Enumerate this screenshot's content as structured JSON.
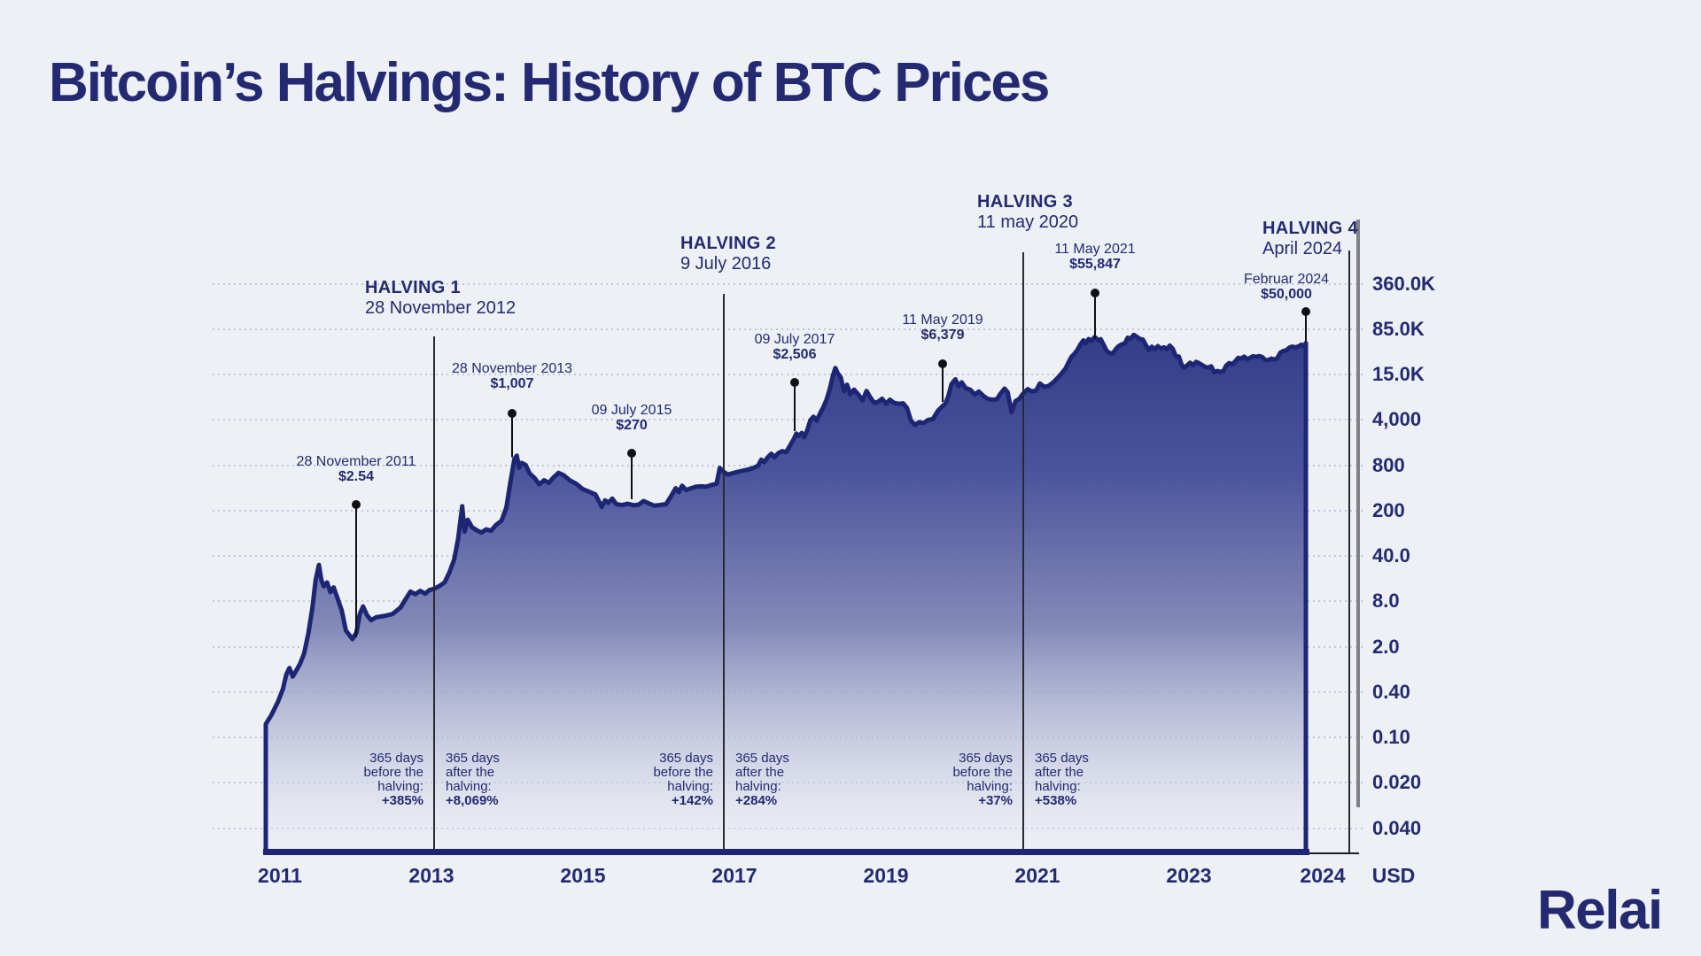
{
  "title": "Bitcoin’s Halvings: History of BTC Prices",
  "brand": "Relai",
  "chart_data": {
    "type": "area",
    "y_scale": "log",
    "title": "Bitcoin’s Halvings: History of BTC Prices",
    "unit_label": "USD",
    "grid": "dotted-horizontal",
    "y_ticks": [
      "360.0K",
      "85.0K",
      "15.0K",
      "4,000",
      "800",
      "200",
      "40.0",
      "8.0",
      "2.0",
      "0.40",
      "0.10",
      "0.020",
      "0.040"
    ],
    "y_tick_values": [
      360000,
      85000,
      15000,
      4000,
      800,
      200,
      40,
      8,
      2,
      0.4,
      0.1,
      0.02,
      0.04
    ],
    "x_ticks": [
      "2011",
      "2013",
      "2015",
      "2017",
      "2019",
      "2021",
      "2023",
      "2024"
    ],
    "halvings": [
      {
        "name": "HALVING 1",
        "date": "28 November 2012"
      },
      {
        "name": "HALVING 2",
        "date": "9 July 2016"
      },
      {
        "name": "HALVING 3",
        "date": "11 may 2020"
      },
      {
        "name": "HALVING 4",
        "date": "April 2024"
      }
    ],
    "annotations": [
      {
        "date": "28 November 2011",
        "price_label": "$2.54",
        "price": 2.54
      },
      {
        "date": "28 November 2013",
        "price_label": "$1,007",
        "price": 1007
      },
      {
        "date": "09 July 2015",
        "price_label": "$270",
        "price": 270
      },
      {
        "date": "09 July 2017",
        "price_label": "$2,506",
        "price": 2506
      },
      {
        "date": "11 May 2019",
        "price_label": "$6,379",
        "price": 6379
      },
      {
        "date": "11 May 2021",
        "price_label": "$55,847",
        "price": 55847
      },
      {
        "date": "Februar 2024",
        "price_label": "$50,000",
        "price": 50000
      }
    ],
    "halving_stats": [
      {
        "lines": [
          "365 days",
          "before the",
          "halving:"
        ],
        "value": "+385%"
      },
      {
        "lines": [
          "365 days",
          "after the",
          "halving:"
        ],
        "value": "+8,069%"
      },
      {
        "lines": [
          "365 days",
          "before the",
          "halving:"
        ],
        "value": "+142%"
      },
      {
        "lines": [
          "365 days",
          "after the",
          "halving:"
        ],
        "value": "+284%"
      },
      {
        "lines": [
          "365 days",
          "before the",
          "halving:"
        ],
        "value": "+37%"
      },
      {
        "lines": [
          "365 days",
          "after the",
          "halving:"
        ],
        "value": "+538%"
      }
    ],
    "series": [
      [
        2010.85,
        0.15
      ],
      [
        2010.92,
        0.2
      ],
      [
        2011.0,
        0.3
      ],
      [
        2011.06,
        0.45
      ],
      [
        2011.1,
        0.75
      ],
      [
        2011.14,
        0.95
      ],
      [
        2011.18,
        0.7
      ],
      [
        2011.22,
        0.85
      ],
      [
        2011.27,
        1.1
      ],
      [
        2011.32,
        1.6
      ],
      [
        2011.37,
        3.0
      ],
      [
        2011.42,
        6.5
      ],
      [
        2011.46,
        17
      ],
      [
        2011.5,
        29
      ],
      [
        2011.53,
        17
      ],
      [
        2011.56,
        13.5
      ],
      [
        2011.6,
        15.5
      ],
      [
        2011.64,
        11
      ],
      [
        2011.68,
        13
      ],
      [
        2011.72,
        9.5
      ],
      [
        2011.78,
        6
      ],
      [
        2011.83,
        3.3
      ],
      [
        2011.87,
        2.9
      ],
      [
        2011.91,
        2.54
      ],
      [
        2011.96,
        3.1
      ],
      [
        2012.0,
        5.4
      ],
      [
        2012.04,
        6.8
      ],
      [
        2012.09,
        5.2
      ],
      [
        2012.14,
        4.5
      ],
      [
        2012.2,
        4.9
      ],
      [
        2012.3,
        5.1
      ],
      [
        2012.4,
        5.4
      ],
      [
        2012.5,
        6.6
      ],
      [
        2012.56,
        8.5
      ],
      [
        2012.62,
        11.2
      ],
      [
        2012.68,
        10.2
      ],
      [
        2012.74,
        11.5
      ],
      [
        2012.8,
        10.4
      ],
      [
        2012.85,
        11.8
      ],
      [
        2012.91,
        12.4
      ],
      [
        2012.97,
        13.5
      ],
      [
        2013.04,
        15.5
      ],
      [
        2013.1,
        22
      ],
      [
        2013.16,
        35
      ],
      [
        2013.21,
        75
      ],
      [
        2013.26,
        230
      ],
      [
        2013.29,
        95
      ],
      [
        2013.33,
        145
      ],
      [
        2013.38,
        112
      ],
      [
        2013.44,
        100
      ],
      [
        2013.5,
        92
      ],
      [
        2013.56,
        103
      ],
      [
        2013.62,
        98
      ],
      [
        2013.68,
        120
      ],
      [
        2013.75,
        140
      ],
      [
        2013.81,
        220
      ],
      [
        2013.86,
        480
      ],
      [
        2013.91,
        1007
      ],
      [
        2013.94,
        1130
      ],
      [
        2013.97,
        750
      ],
      [
        2014.0,
        880
      ],
      [
        2014.05,
        820
      ],
      [
        2014.1,
        630
      ],
      [
        2014.16,
        550
      ],
      [
        2014.22,
        450
      ],
      [
        2014.28,
        510
      ],
      [
        2014.34,
        470
      ],
      [
        2014.4,
        560
      ],
      [
        2014.46,
        640
      ],
      [
        2014.52,
        600
      ],
      [
        2014.6,
        510
      ],
      [
        2014.68,
        460
      ],
      [
        2014.76,
        390
      ],
      [
        2014.84,
        360
      ],
      [
        2014.92,
        330
      ],
      [
        2015.0,
        225
      ],
      [
        2015.04,
        275
      ],
      [
        2015.08,
        255
      ],
      [
        2015.13,
        290
      ],
      [
        2015.18,
        245
      ],
      [
        2015.25,
        238
      ],
      [
        2015.32,
        248
      ],
      [
        2015.4,
        237
      ],
      [
        2015.46,
        242
      ],
      [
        2015.52,
        270
      ],
      [
        2015.58,
        252
      ],
      [
        2015.65,
        234
      ],
      [
        2015.72,
        238
      ],
      [
        2015.8,
        245
      ],
      [
        2015.86,
        310
      ],
      [
        2015.92,
        400
      ],
      [
        2015.96,
        355
      ],
      [
        2016.0,
        432
      ],
      [
        2016.05,
        378
      ],
      [
        2016.1,
        395
      ],
      [
        2016.17,
        418
      ],
      [
        2016.24,
        423
      ],
      [
        2016.3,
        418
      ],
      [
        2016.37,
        442
      ],
      [
        2016.43,
        458
      ],
      [
        2016.47,
        745
      ],
      [
        2016.52,
        660
      ],
      [
        2016.57,
        608
      ],
      [
        2016.62,
        628
      ],
      [
        2016.68,
        655
      ],
      [
        2016.75,
        680
      ],
      [
        2016.82,
        705
      ],
      [
        2016.9,
        745
      ],
      [
        2016.96,
        795
      ],
      [
        2017.0,
        985
      ],
      [
        2017.04,
        905
      ],
      [
        2017.08,
        1060
      ],
      [
        2017.13,
        1210
      ],
      [
        2017.17,
        1070
      ],
      [
        2017.22,
        1240
      ],
      [
        2017.27,
        1330
      ],
      [
        2017.32,
        1280
      ],
      [
        2017.37,
        1620
      ],
      [
        2017.42,
        2050
      ],
      [
        2017.45,
        2450
      ],
      [
        2017.48,
        2250
      ],
      [
        2017.52,
        2506
      ],
      [
        2017.55,
        2150
      ],
      [
        2017.59,
        2750
      ],
      [
        2017.63,
        3900
      ],
      [
        2017.67,
        4350
      ],
      [
        2017.71,
        3850
      ],
      [
        2017.76,
        4900
      ],
      [
        2017.8,
        5850
      ],
      [
        2017.84,
        7300
      ],
      [
        2017.88,
        9900
      ],
      [
        2017.92,
        14500
      ],
      [
        2017.95,
        19200
      ],
      [
        2017.98,
        15800
      ],
      [
        2018.02,
        13800
      ],
      [
        2018.06,
        9200
      ],
      [
        2018.1,
        11100
      ],
      [
        2018.14,
        8400
      ],
      [
        2018.19,
        9600
      ],
      [
        2018.25,
        8200
      ],
      [
        2018.3,
        7000
      ],
      [
        2018.35,
        9250
      ],
      [
        2018.4,
        7600
      ],
      [
        2018.45,
        6500
      ],
      [
        2018.5,
        6750
      ],
      [
        2018.55,
        7350
      ],
      [
        2018.6,
        6350
      ],
      [
        2018.65,
        7150
      ],
      [
        2018.7,
        6550
      ],
      [
        2018.76,
        6350
      ],
      [
        2018.82,
        6450
      ],
      [
        2018.87,
        5600
      ],
      [
        2018.92,
        3850
      ],
      [
        2018.97,
        3300
      ],
      [
        2019.02,
        3650
      ],
      [
        2019.08,
        3550
      ],
      [
        2019.14,
        3950
      ],
      [
        2019.2,
        4050
      ],
      [
        2019.27,
        5250
      ],
      [
        2019.32,
        5850
      ],
      [
        2019.36,
        6379
      ],
      [
        2019.4,
        7950
      ],
      [
        2019.44,
        11300
      ],
      [
        2019.49,
        13000
      ],
      [
        2019.53,
        10600
      ],
      [
        2019.57,
        11900
      ],
      [
        2019.62,
        10100
      ],
      [
        2019.68,
        9600
      ],
      [
        2019.74,
        8300
      ],
      [
        2019.79,
        9100
      ],
      [
        2019.85,
        8000
      ],
      [
        2019.9,
        7350
      ],
      [
        2019.96,
        7150
      ],
      [
        2020.02,
        7250
      ],
      [
        2020.07,
        8600
      ],
      [
        2020.12,
        9900
      ],
      [
        2020.16,
        8900
      ],
      [
        2020.21,
        4950
      ],
      [
        2020.26,
        6850
      ],
      [
        2020.31,
        7350
      ],
      [
        2020.36,
        8600
      ],
      [
        2020.42,
        9750
      ],
      [
        2020.47,
        9150
      ],
      [
        2020.53,
        9300
      ],
      [
        2020.58,
        11500
      ],
      [
        2020.64,
        10400
      ],
      [
        2020.7,
        10700
      ],
      [
        2020.76,
        11900
      ],
      [
        2020.82,
        13600
      ],
      [
        2020.87,
        15600
      ],
      [
        2020.92,
        18600
      ],
      [
        2020.96,
        23500
      ],
      [
        2021.0,
        29300
      ],
      [
        2021.04,
        33000
      ],
      [
        2021.08,
        38500
      ],
      [
        2021.12,
        47500
      ],
      [
        2021.16,
        55500
      ],
      [
        2021.19,
        49500
      ],
      [
        2021.23,
        58500
      ],
      [
        2021.27,
        54500
      ],
      [
        2021.31,
        63500
      ],
      [
        2021.34,
        58500
      ],
      [
        2021.36,
        55847
      ],
      [
        2021.39,
        58000
      ],
      [
        2021.43,
        46500
      ],
      [
        2021.47,
        37000
      ],
      [
        2021.51,
        34000
      ],
      [
        2021.55,
        33500
      ],
      [
        2021.59,
        39500
      ],
      [
        2021.63,
        44500
      ],
      [
        2021.67,
        47500
      ],
      [
        2021.71,
        49000
      ],
      [
        2021.75,
        61500
      ],
      [
        2021.79,
        59000
      ],
      [
        2021.83,
        68500
      ],
      [
        2021.87,
        64000
      ],
      [
        2021.91,
        58500
      ],
      [
        2021.95,
        57500
      ],
      [
        2021.99,
        46500
      ],
      [
        2022.03,
        38500
      ],
      [
        2022.07,
        43500
      ],
      [
        2022.11,
        39500
      ],
      [
        2022.15,
        44500
      ],
      [
        2022.19,
        40500
      ],
      [
        2022.23,
        42500
      ],
      [
        2022.27,
        39500
      ],
      [
        2022.31,
        45500
      ],
      [
        2022.35,
        40000
      ],
      [
        2022.39,
        30000
      ],
      [
        2022.43,
        29800
      ],
      [
        2022.47,
        21500
      ],
      [
        2022.5,
        19200
      ],
      [
        2022.54,
        21300
      ],
      [
        2022.58,
        23500
      ],
      [
        2022.62,
        21200
      ],
      [
        2022.66,
        24300
      ],
      [
        2022.7,
        23000
      ],
      [
        2022.74,
        21500
      ],
      [
        2022.78,
        20000
      ],
      [
        2022.82,
        19500
      ],
      [
        2022.86,
        20500
      ],
      [
        2022.9,
        16300
      ],
      [
        2022.94,
        17100
      ],
      [
        2022.98,
        16600
      ],
      [
        2023.02,
        16900
      ],
      [
        2023.06,
        21100
      ],
      [
        2023.1,
        23300
      ],
      [
        2023.14,
        22100
      ],
      [
        2023.18,
        24800
      ],
      [
        2023.22,
        28300
      ],
      [
        2023.26,
        27600
      ],
      [
        2023.3,
        29700
      ],
      [
        2023.34,
        26900
      ],
      [
        2023.38,
        28500
      ],
      [
        2023.42,
        30200
      ],
      [
        2023.46,
        29400
      ],
      [
        2023.5,
        30400
      ],
      [
        2023.54,
        29200
      ],
      [
        2023.58,
        26100
      ],
      [
        2023.62,
        25900
      ],
      [
        2023.66,
        27600
      ],
      [
        2023.7,
        26600
      ],
      [
        2023.74,
        28100
      ],
      [
        2023.78,
        34600
      ],
      [
        2023.82,
        36900
      ],
      [
        2023.86,
        37800
      ],
      [
        2023.9,
        42100
      ],
      [
        2023.94,
        43800
      ],
      [
        2023.98,
        42300
      ],
      [
        2024.02,
        43900
      ],
      [
        2024.06,
        47100
      ],
      [
        2024.09,
        44800
      ],
      [
        2024.12,
        50000
      ]
    ]
  }
}
